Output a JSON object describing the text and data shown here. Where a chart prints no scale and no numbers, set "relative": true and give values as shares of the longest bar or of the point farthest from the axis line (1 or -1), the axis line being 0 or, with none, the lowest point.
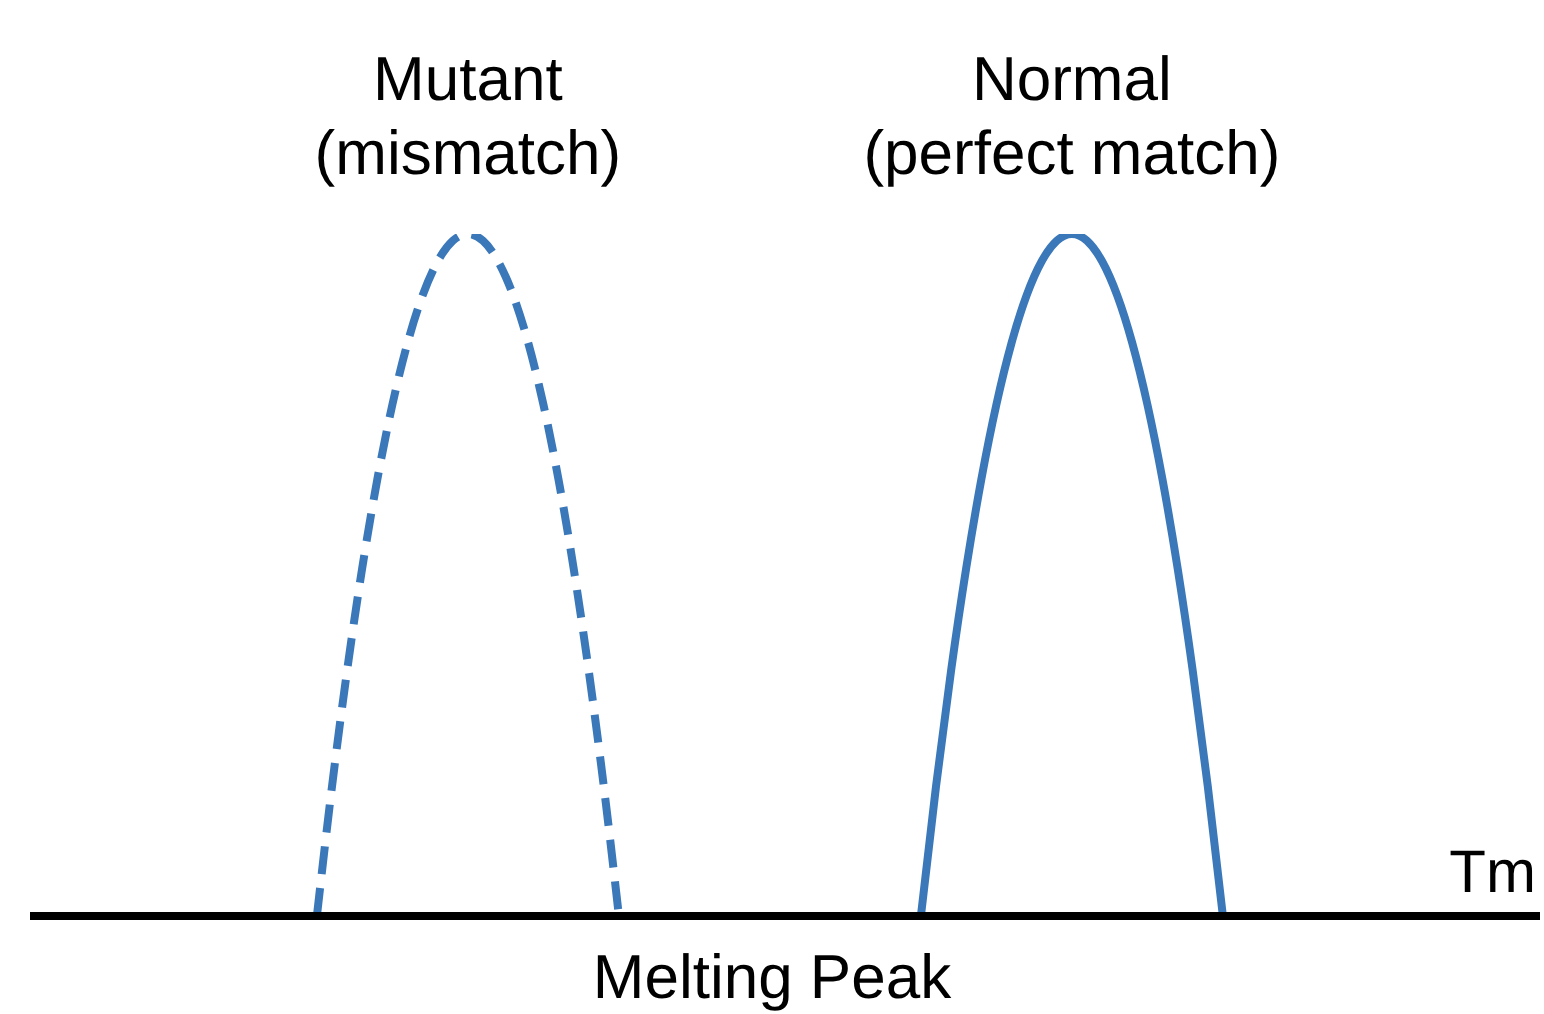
{
  "chart_data": {
    "type": "line",
    "relative": true,
    "title": "Melting Peak",
    "xlabel": "Tm",
    "categories": [
      null,
      null,
      null,
      null,
      null,
      null,
      null,
      null,
      null,
      null,
      null,
      null,
      null,
      null,
      null,
      null,
      null,
      null,
      null,
      null,
      null,
      null,
      null,
      null,
      null,
      null,
      null,
      null,
      null,
      null,
      null,
      null,
      null,
      null,
      null,
      null,
      null,
      null,
      null,
      null,
      null,
      null,
      null,
      null,
      null,
      null,
      null,
      null,
      null,
      null,
      null,
      null,
      null,
      null,
      null,
      null,
      null,
      null,
      null,
      null,
      null,
      null,
      null,
      null,
      null,
      null,
      null,
      null,
      null,
      null,
      null,
      null,
      null,
      null,
      null,
      null,
      null,
      null,
      null,
      null,
      null,
      null,
      null,
      null,
      null,
      null,
      null,
      null,
      null,
      null,
      null,
      null,
      null,
      null,
      null,
      null,
      null,
      null,
      null,
      null,
      null
    ],
    "series": [
      {
        "name": "Mutant (mismatch)",
        "color": "#3b78b9",
        "line_style": "dashed",
        "values": [
          null,
          null,
          null,
          null,
          null,
          null,
          null,
          null,
          null,
          null,
          null,
          null,
          null,
          null,
          null,
          null,
          null,
          null,
          null,
          0,
          0.19,
          0.36,
          0.51,
          0.64,
          0.75,
          0.84,
          0.91,
          0.96,
          0.99,
          1,
          0.99,
          0.96,
          0.91,
          0.84,
          0.75,
          0.64,
          0.51,
          0.36,
          0.19,
          0,
          null,
          null,
          null,
          null,
          null,
          null,
          null,
          null,
          null,
          null,
          null,
          null,
          null,
          null,
          null,
          null,
          null,
          null,
          null,
          null,
          null,
          null,
          null,
          null,
          null,
          null,
          null,
          null,
          null,
          null,
          null,
          null,
          null,
          null,
          null,
          null,
          null,
          null,
          null,
          null,
          null,
          null,
          null,
          null,
          null,
          null,
          null,
          null,
          null,
          null,
          null,
          null,
          null,
          null,
          null,
          null,
          null,
          null,
          null,
          null,
          null
        ]
      },
      {
        "name": "Normal (perfect match)",
        "color": "#3b78b9",
        "line_style": "solid",
        "values": [
          null,
          null,
          null,
          null,
          null,
          null,
          null,
          null,
          null,
          null,
          null,
          null,
          null,
          null,
          null,
          null,
          null,
          null,
          null,
          null,
          null,
          null,
          null,
          null,
          null,
          null,
          null,
          null,
          null,
          null,
          null,
          null,
          null,
          null,
          null,
          null,
          null,
          null,
          null,
          null,
          null,
          null,
          null,
          null,
          null,
          null,
          null,
          null,
          null,
          null,
          null,
          null,
          null,
          null,
          null,
          null,
          null,
          null,
          null,
          0,
          0.19,
          0.36,
          0.51,
          0.64,
          0.75,
          0.84,
          0.91,
          0.96,
          0.99,
          1,
          0.99,
          0.96,
          0.91,
          0.84,
          0.75,
          0.64,
          0.51,
          0.36,
          0.19,
          0,
          null,
          null,
          null,
          null,
          null,
          null,
          null,
          null,
          null,
          null,
          null,
          null,
          null,
          null,
          null,
          null,
          null,
          null,
          null,
          null,
          null
        ]
      }
    ]
  }
}
